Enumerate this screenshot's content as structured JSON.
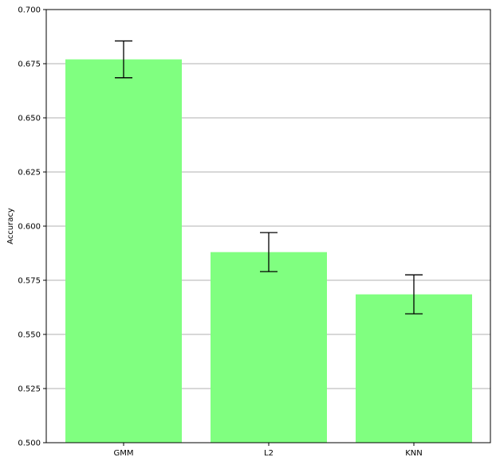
{
  "chart_data": {
    "type": "bar",
    "title": "",
    "xlabel": "",
    "ylabel": "Accuracy",
    "categories": [
      "GMM",
      "L2",
      "KNN"
    ],
    "values": [
      0.677,
      0.588,
      0.5685
    ],
    "errors": [
      0.0085,
      0.009,
      0.009
    ],
    "ylim": [
      0.5,
      0.7
    ],
    "yticks": [
      0.5,
      0.525,
      0.55,
      0.575,
      0.6,
      0.625,
      0.65,
      0.675,
      0.7
    ],
    "ytick_labels": [
      "0.500",
      "0.525",
      "0.550",
      "0.575",
      "0.600",
      "0.625",
      "0.650",
      "0.675",
      "0.700"
    ],
    "grid": "y",
    "legend": "none",
    "bar_color": "#80ff80",
    "error_color": "#000000",
    "grid_color": "#b0b0b0"
  }
}
